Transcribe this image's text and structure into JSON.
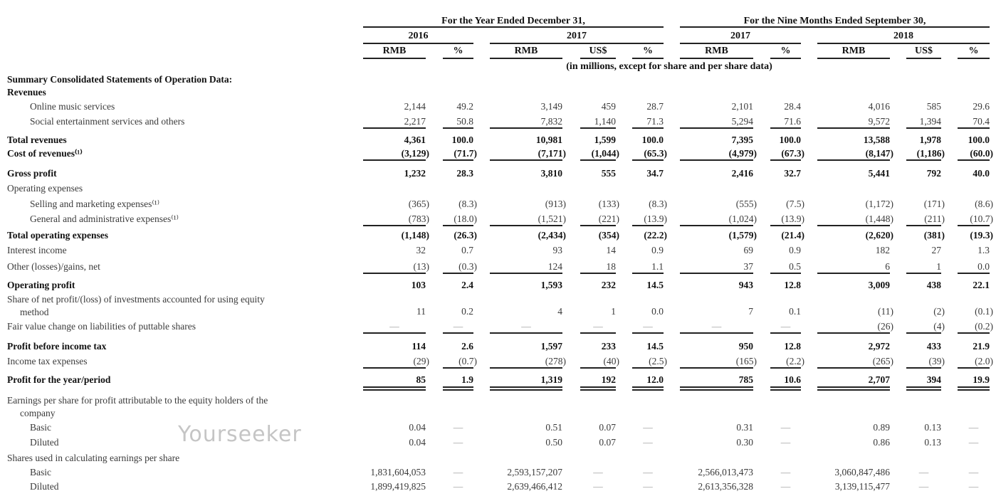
{
  "header": {
    "group_year": "For the Year Ended December 31,",
    "group_nine": "For the Nine Months Ended September 30,",
    "year_2016": "2016",
    "year_2017": "2017",
    "nine_2017": "2017",
    "nine_2018": "2018",
    "col_labels": [
      "RMB",
      "%",
      "RMB",
      "US$",
      "%",
      "RMB",
      "%",
      "RMB",
      "US$",
      "%"
    ],
    "units_note": "(in millions, except for share and per share data)"
  },
  "rows": [
    {
      "label": "Summary Consolidated Statements of Operation Data:",
      "bold": true,
      "indent": 0,
      "values": []
    },
    {
      "label": "Revenues",
      "bold": true,
      "indent": 0,
      "values": []
    },
    {
      "label": "Online music services",
      "indent": 1,
      "values": [
        "2,144",
        "49.2",
        "3,149",
        "459",
        "28.7",
        "2,101",
        "28.4",
        "4,016",
        "585",
        "29.6"
      ]
    },
    {
      "label": "Social entertainment services and others",
      "indent": 1,
      "values": [
        "2,217",
        "50.8",
        "7,832",
        "1,140",
        "71.3",
        "5,294",
        "71.6",
        "9,572",
        "1,394",
        "70.4"
      ]
    },
    {
      "label": "Total revenues",
      "bold": true,
      "indent": 0,
      "values": [
        "4,361",
        "100.0",
        "10,981",
        "1,599",
        "100.0",
        "7,395",
        "100.0",
        "13,588",
        "1,978",
        "100.0"
      ]
    },
    {
      "label": "Cost of revenues⁽¹⁾",
      "bold": true,
      "indent": 0,
      "values": [
        "(3,129)",
        "(71.7)",
        "(7,171)",
        "(1,044)",
        "(65.3)",
        "(4,979)",
        "(67.3)",
        "(8,147)",
        "(1,186)",
        "(60.0)"
      ]
    },
    {
      "label": "Gross profit",
      "bold": true,
      "indent": 0,
      "values": [
        "1,232",
        "28.3",
        "3,810",
        "555",
        "34.7",
        "2,416",
        "32.7",
        "5,441",
        "792",
        "40.0"
      ]
    },
    {
      "label": "Operating expenses",
      "indent": 0,
      "values": []
    },
    {
      "label": "Selling and marketing expenses⁽¹⁾",
      "indent": 1,
      "values": [
        "(365)",
        "(8.3)",
        "(913)",
        "(133)",
        "(8.3)",
        "(555)",
        "(7.5)",
        "(1,172)",
        "(171)",
        "(8.6)"
      ]
    },
    {
      "label": "General and administrative expenses⁽¹⁾",
      "indent": 1,
      "values": [
        "(783)",
        "(18.0)",
        "(1,521)",
        "(221)",
        "(13.9)",
        "(1,024)",
        "(13.9)",
        "(1,448)",
        "(211)",
        "(10.7)"
      ]
    },
    {
      "label": "Total operating expenses",
      "bold": true,
      "indent": 0,
      "values": [
        "(1,148)",
        "(26.3)",
        "(2,434)",
        "(354)",
        "(22.2)",
        "(1,579)",
        "(21.4)",
        "(2,620)",
        "(381)",
        "(19.3)"
      ]
    },
    {
      "label": "Interest income",
      "indent": 0,
      "values": [
        "32",
        "0.7",
        "93",
        "14",
        "0.9",
        "69",
        "0.9",
        "182",
        "27",
        "1.3"
      ]
    },
    {
      "label": "Other (losses)/gains, net",
      "indent": 0,
      "values": [
        "(13)",
        "(0.3)",
        "124",
        "18",
        "1.1",
        "37",
        "0.5",
        "6",
        "1",
        "0.0"
      ]
    },
    {
      "label": "Operating profit",
      "bold": true,
      "indent": 0,
      "values": [
        "103",
        "2.4",
        "1,593",
        "232",
        "14.5",
        "943",
        "12.8",
        "3,009",
        "438",
        "22.1"
      ]
    },
    {
      "label": "Share of net profit/(loss) of investments accounted for using equity",
      "label2": "method",
      "indent": 0,
      "values": [
        "11",
        "0.2",
        "4",
        "1",
        "0.0",
        "7",
        "0.1",
        "(11)",
        "(2)",
        "(0.1)"
      ]
    },
    {
      "label": "Fair value change on liabilities of puttable shares",
      "indent": 0,
      "values": [
        "—",
        "—",
        "—",
        "—",
        "—",
        "—",
        "—",
        "(26)",
        "(4)",
        "(0.2)"
      ]
    },
    {
      "label": "Profit before income tax",
      "bold": true,
      "indent": 0,
      "values": [
        "114",
        "2.6",
        "1,597",
        "233",
        "14.5",
        "950",
        "12.8",
        "2,972",
        "433",
        "21.9"
      ]
    },
    {
      "label": "Income tax expenses",
      "indent": 0,
      "values": [
        "(29)",
        "(0.7)",
        "(278)",
        "(40)",
        "(2.5)",
        "(165)",
        "(2.2)",
        "(265)",
        "(39)",
        "(2.0)"
      ]
    },
    {
      "label": "Profit for the year/period",
      "bold": true,
      "indent": 0,
      "values": [
        "85",
        "1.9",
        "1,319",
        "192",
        "12.0",
        "785",
        "10.6",
        "2,707",
        "394",
        "19.9"
      ]
    },
    {
      "label": "Earnings per share for profit attributable to the equity holders of the",
      "label2": "company",
      "indent": 0,
      "values": []
    },
    {
      "label": "Basic",
      "indent": 1,
      "values": [
        "0.04",
        "—",
        "0.51",
        "0.07",
        "—",
        "0.31",
        "—",
        "0.89",
        "0.13",
        "—"
      ]
    },
    {
      "label": "Diluted",
      "indent": 1,
      "values": [
        "0.04",
        "—",
        "0.50",
        "0.07",
        "—",
        "0.30",
        "—",
        "0.86",
        "0.13",
        "—"
      ]
    },
    {
      "label": "Shares used in calculating earnings per share",
      "indent": 0,
      "values": []
    },
    {
      "label": "Basic",
      "indent": 1,
      "values": [
        "1,831,604,053",
        "—",
        "2,593,157,207",
        "—",
        "—",
        "2,566,013,473",
        "—",
        "3,060,847,486",
        "—",
        "—"
      ]
    },
    {
      "label": "Diluted",
      "indent": 1,
      "values": [
        "1,899,419,825",
        "—",
        "2,639,466,412",
        "—",
        "—",
        "2,613,356,328",
        "—",
        "3,139,115,477",
        "—",
        "—"
      ]
    }
  ],
  "watermark": "Yourseeker"
}
